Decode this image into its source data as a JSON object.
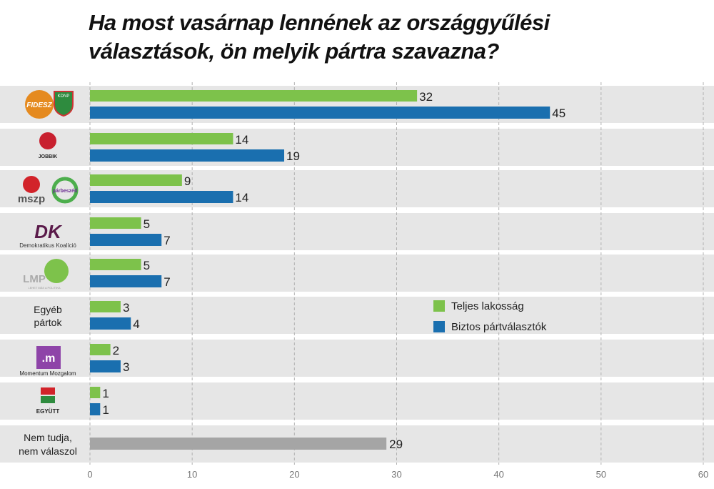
{
  "chart_data": {
    "type": "bar",
    "orientation": "horizontal",
    "title": "Ha most vasárnap lennének az országgyűlési választások, ön melyik pártra szavazna?",
    "categories": [
      "FIDESZ / KDNP",
      "JOBBIK",
      "MSZP / Párbeszéd",
      "Demokratikus Koalíció",
      "LMP",
      "Egyéb pártok",
      "Momentum Mozgalom",
      "EGYÜTT",
      "Nem tudja, nem válaszol"
    ],
    "category_labels": [
      [
        "FIDESZ",
        "KDNP"
      ],
      [
        "JOBBIK"
      ],
      [
        "mszp",
        "párbeszéd"
      ],
      [
        "DK",
        "Demokratikus Koalíció"
      ],
      [
        "LMP",
        "LEHET MÁS A POLITIKA"
      ],
      [
        "Egyéb",
        "pártok"
      ],
      [
        ".m",
        "Momentum Mozgalom"
      ],
      [
        "EGYÜTT"
      ],
      [
        "Nem tudja,",
        "nem válaszol"
      ]
    ],
    "series": [
      {
        "name": "Teljes lakosság",
        "color": "#7dc24b",
        "values": [
          32,
          14,
          9,
          5,
          5,
          3,
          2,
          1,
          null
        ]
      },
      {
        "name": "Biztos pártválasztók",
        "color": "#1a6faf",
        "values": [
          45,
          19,
          14,
          7,
          7,
          4,
          3,
          1,
          null
        ]
      },
      {
        "name": "",
        "color": "#a5a5a5",
        "values": [
          null,
          null,
          null,
          null,
          null,
          null,
          null,
          null,
          29
        ]
      }
    ],
    "xlim": [
      0,
      60
    ],
    "xticks": [
      0,
      10,
      20,
      30,
      40,
      50,
      60
    ],
    "grid": true,
    "legend": "center-right"
  }
}
